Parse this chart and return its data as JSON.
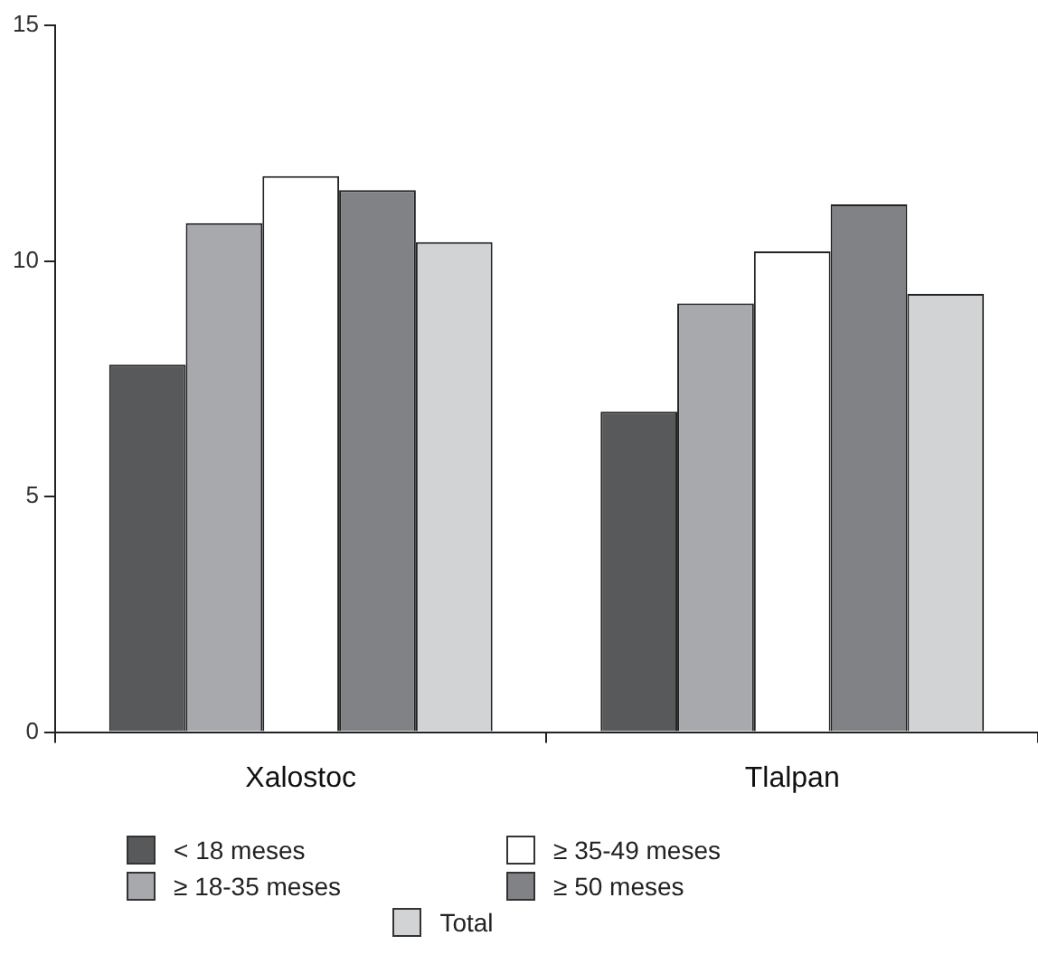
{
  "chart_data": {
    "type": "bar",
    "categories": [
      "Xalostoc",
      "Tlalpan"
    ],
    "series": [
      {
        "name": "< 18 meses",
        "color": "#58595b",
        "values": [
          7.8,
          6.8
        ]
      },
      {
        "name": "≥ 18-35 meses",
        "color": "#a7a9ac",
        "values": [
          10.8,
          9.1
        ]
      },
      {
        "name": "≥ 35-49 meses",
        "color": "#ffffff",
        "values": [
          11.8,
          10.2
        ]
      },
      {
        "name": "≥ 50 meses",
        "color": "#808285",
        "values": [
          11.5,
          11.2
        ]
      },
      {
        "name": "Total",
        "color": "#d1d3d4",
        "values": [
          10.4,
          9.3
        ]
      }
    ],
    "ylim": [
      0,
      15
    ],
    "yticks": [
      0,
      5,
      10,
      15
    ],
    "grid": false,
    "legend": "bottom"
  }
}
